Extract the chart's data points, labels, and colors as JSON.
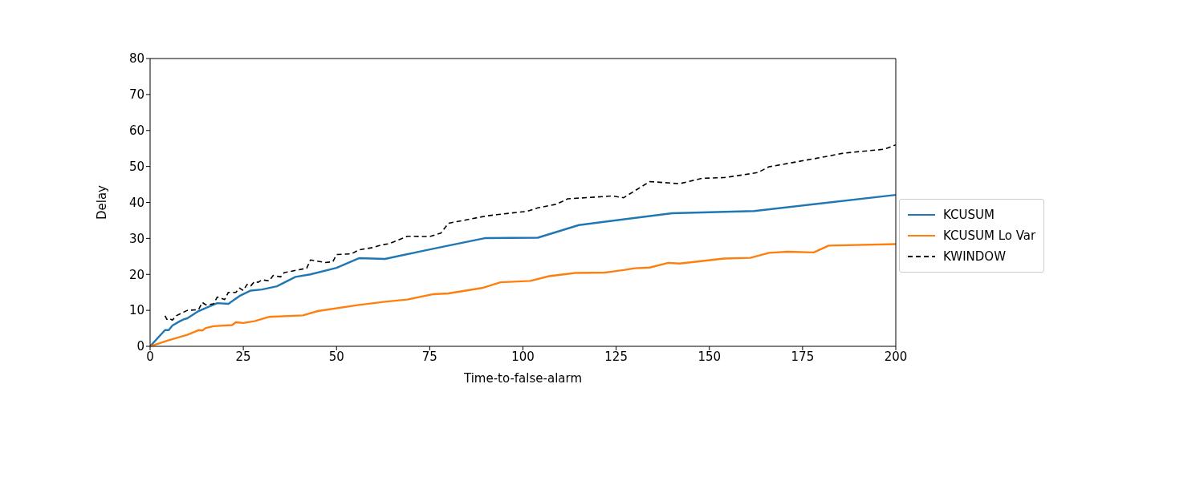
{
  "chart_data": {
    "type": "line",
    "xlabel": "Time-to-false-alarm",
    "ylabel": "Delay",
    "xlim": [
      0,
      200
    ],
    "xticks": [
      0,
      25,
      50,
      75,
      100,
      125,
      150,
      175,
      200
    ],
    "ylim": [
      0,
      80
    ],
    "yticks": [
      0,
      10,
      20,
      30,
      40,
      50,
      60,
      70,
      80
    ],
    "grid": false,
    "legend": "right",
    "marker": "none",
    "series": [
      {
        "name": "KCUSUM",
        "color": "#1f77b4",
        "line_style": "solid",
        "x": [
          0,
          4,
          5,
          6,
          8,
          9,
          10,
          13,
          18,
          21,
          24,
          27,
          30,
          34,
          39,
          43,
          50,
          56,
          63,
          73,
          80,
          90,
          104,
          115,
          140,
          162,
          200
        ],
        "values": [
          0,
          4.5,
          4.5,
          5.8,
          7,
          7.5,
          7.8,
          9.8,
          12,
          11.8,
          14,
          15.5,
          15.8,
          16.7,
          19.3,
          20,
          21.8,
          24.5,
          24.3,
          26.5,
          28,
          30.1,
          30.2,
          33.7,
          37,
          37.6,
          42.1
        ]
      },
      {
        "name": "KCUSUM Lo Var",
        "color": "#ff7f0e",
        "line_style": "solid",
        "x": [
          0,
          5,
          10,
          13,
          14,
          15,
          17,
          22,
          23,
          25,
          28,
          32,
          41,
          45,
          56,
          63,
          69,
          76,
          80,
          89,
          94,
          102,
          107,
          114,
          122,
          127,
          130,
          134,
          139,
          142,
          154,
          161,
          166,
          171,
          178,
          182,
          200
        ],
        "values": [
          0,
          1.7,
          3.2,
          4.5,
          4.4,
          5.1,
          5.6,
          5.9,
          6.7,
          6.5,
          7,
          8.2,
          8.6,
          9.8,
          11.5,
          12.4,
          13,
          14.5,
          14.7,
          16.2,
          17.8,
          18.2,
          19.5,
          20.4,
          20.5,
          21.2,
          21.7,
          21.9,
          23.2,
          23,
          24.4,
          24.6,
          26,
          26.3,
          26.1,
          28,
          28.4
        ]
      },
      {
        "name": "KWINDOW",
        "color": "#000000",
        "line_style": "dashed",
        "x": [
          4,
          4.5,
          5,
          6,
          7,
          9,
          10,
          13,
          14,
          15,
          17,
          18,
          20,
          21,
          23,
          24,
          25,
          26,
          27,
          28,
          29,
          30,
          32,
          33,
          35,
          36,
          42,
          43,
          47,
          49,
          50,
          54,
          56,
          60,
          62,
          64,
          69,
          75,
          78,
          80,
          90,
          93,
          99,
          101,
          104,
          109,
          112,
          124,
          127,
          134,
          142,
          148,
          154,
          158,
          163,
          166,
          180,
          186,
          197,
          200
        ],
        "values": [
          8.5,
          7.5,
          7.8,
          7.3,
          8.5,
          9.5,
          10,
          10.2,
          12.2,
          11.5,
          11.8,
          13.7,
          13,
          15,
          15,
          16.2,
          15.5,
          17.2,
          16.8,
          18,
          17.8,
          18.5,
          18.2,
          19.7,
          19.3,
          20.5,
          21.7,
          24,
          23.3,
          23.5,
          25.5,
          25.7,
          26.8,
          27.5,
          28.2,
          28.5,
          30.6,
          30.5,
          31.5,
          34.2,
          36.2,
          36.6,
          37.3,
          37.5,
          38.5,
          39.5,
          41,
          41.8,
          41.3,
          45.8,
          45.2,
          46.7,
          46.9,
          47.5,
          48.3,
          49.9,
          52.5,
          53.7,
          54.8,
          56
        ]
      }
    ]
  }
}
